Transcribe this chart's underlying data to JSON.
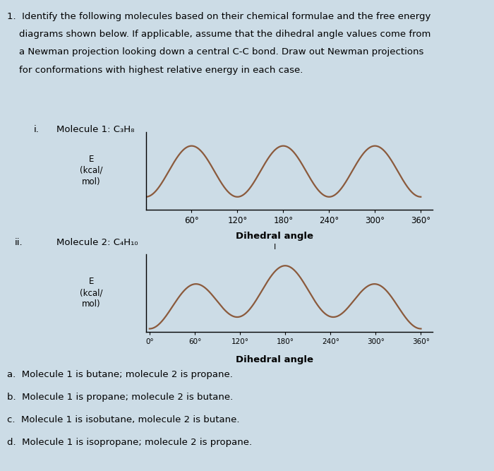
{
  "background_color": "#ccdce6",
  "line_color": "#8B5A3C",
  "line_width": 1.6,
  "question_text_line1": "1.  Identify the following molecules based on their chemical formulae and the free energy",
  "question_text_line2": "    diagrams shown below. If applicable, assume that the dihedral angle values come from",
  "question_text_line3": "    a Newman projection looking down a central C-C bond. Draw out Newman projections",
  "question_text_line4": "    for conformations with highest relative energy in each case.",
  "mol1_label_i": "i.",
  "mol1_label_text": "Molecule 1: C₃H₈",
  "mol2_label_i": "ii.",
  "mol2_label_text": "Molecule 2: C₄H₁₀",
  "ylabel": "E\n(kcal/\nmol)",
  "xlabel": "Dihedral angle",
  "chart1_xticks": [
    "60°",
    "120°",
    "180°",
    "240°",
    "300°",
    "360°"
  ],
  "chart1_xtick_vals": [
    60,
    120,
    180,
    240,
    300,
    360
  ],
  "chart2_xticks": [
    "0°",
    "60°",
    "120°",
    "180°",
    "240°",
    "300°",
    "360°"
  ],
  "chart2_xtick_vals": [
    0,
    60,
    120,
    180,
    240,
    300,
    360
  ],
  "choices": [
    "a.  Molecule 1 is butane; molecule 2 is propane.",
    "b.  Molecule 1 is propane; molecule 2 is butane.",
    "c.  Molecule 1 is isobutane, molecule 2 is butane.",
    "d.  Molecule 1 is isopropane; molecule 2 is propane."
  ],
  "fontsize_text": 9.5,
  "fontsize_axis": 8.5,
  "fontsize_label": 9.5
}
